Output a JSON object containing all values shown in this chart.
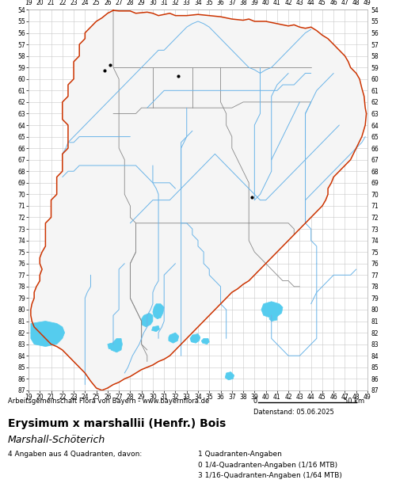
{
  "title": "Erysimum x marshallii (Henfr.) Bois",
  "subtitle": "Marshall-Schöterich",
  "footer_left": "Arbeitsgemeinschaft Flora von Bayern - www.bayernflora.de",
  "footer_date": "Datenstand: 05.06.2025",
  "stats_line1": "4 Angaben aus 4 Quadranten, davon:",
  "stats_line2": "1 Quadranten-Angaben",
  "stats_line3": "0 1/4-Quadranten-Angaben (1/16 MTB)",
  "stats_line4": "3 1/16-Quadranten-Angaben (1/64 MTB)",
  "x_ticks": [
    19,
    20,
    21,
    22,
    23,
    24,
    25,
    26,
    27,
    28,
    29,
    30,
    31,
    32,
    33,
    34,
    35,
    36,
    37,
    38,
    39,
    40,
    41,
    42,
    43,
    44,
    45,
    46,
    47,
    48,
    49
  ],
  "y_ticks": [
    54,
    55,
    56,
    57,
    58,
    59,
    60,
    61,
    62,
    63,
    64,
    65,
    66,
    67,
    68,
    69,
    70,
    71,
    72,
    73,
    74,
    75,
    76,
    77,
    78,
    79,
    80,
    81,
    82,
    83,
    84,
    85,
    86,
    87
  ],
  "x_min": 19,
  "x_max": 49,
  "y_min": 54,
  "y_max": 87,
  "bg_color": "#ffffff",
  "grid_color": "#c8c8c8",
  "outer_border_color": "#cc3300",
  "inner_border_color": "#888888",
  "river_color": "#6ab4e8",
  "lake_color": "#55ccee",
  "dot_color": "#000000",
  "dot_size": 3,
  "occurrence_dots": [
    [
      26.25,
      58.75
    ],
    [
      25.75,
      59.25
    ],
    [
      32.25,
      59.75
    ],
    [
      38.75,
      70.25
    ]
  ],
  "map_bg_color": "#ffffff",
  "title_fontsize": 10,
  "subtitle_fontsize": 9,
  "tick_fontsize": 5.5,
  "footer_fontsize": 6.0
}
